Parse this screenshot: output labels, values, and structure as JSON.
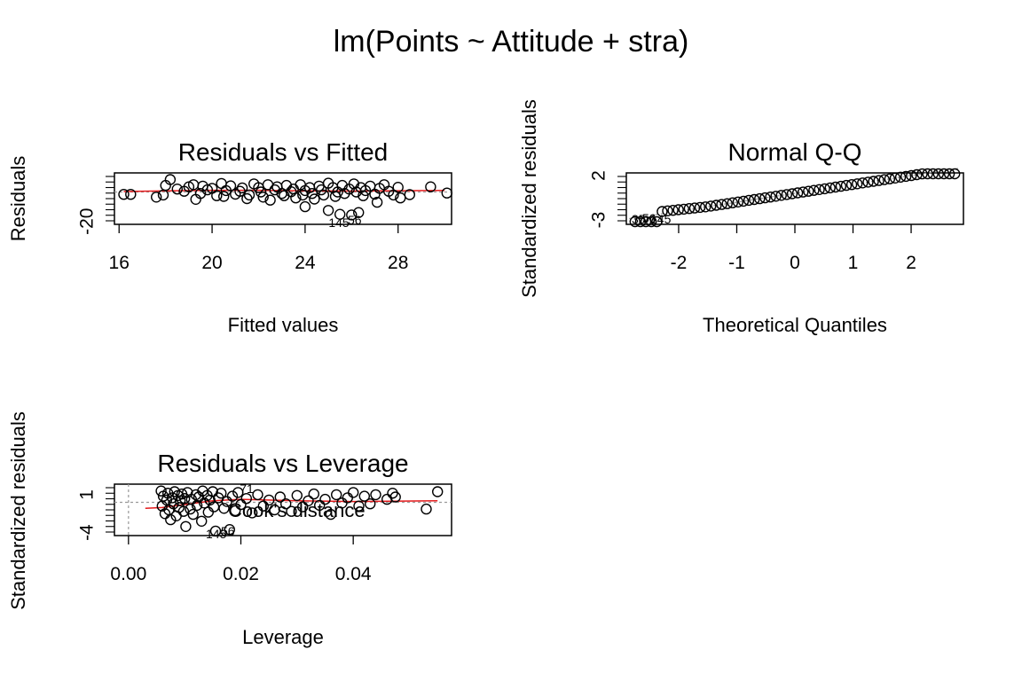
{
  "title": "lm(Points ~ Attitude + stra)",
  "chart_data": [
    {
      "type": "scatter",
      "title": "Residuals vs Fitted",
      "xlabel": "Fitted values",
      "ylabel": "Residuals",
      "xlim": [
        15.8,
        30.3
      ],
      "ylim": [
        -22,
        13
      ],
      "xticks": [
        16,
        20,
        24,
        28
      ],
      "yticks": [
        -20
      ],
      "reference_line_y": 0,
      "smooth_line": [
        [
          16.2,
          0.3
        ],
        [
          18,
          0.8
        ],
        [
          20,
          1.2
        ],
        [
          22,
          1.2
        ],
        [
          24,
          0.8
        ],
        [
          26,
          0.6
        ],
        [
          28,
          0.9
        ],
        [
          30,
          1.1
        ]
      ],
      "points": [
        [
          16.2,
          -1.6
        ],
        [
          16.5,
          -1.6
        ],
        [
          17.6,
          -3.5
        ],
        [
          17.9,
          -2
        ],
        [
          18,
          4.5
        ],
        [
          18.2,
          8.5
        ],
        [
          18.5,
          2
        ],
        [
          18.8,
          0.5
        ],
        [
          19,
          3.5
        ],
        [
          19.2,
          5
        ],
        [
          19.3,
          -5
        ],
        [
          19.5,
          -1
        ],
        [
          19.6,
          4
        ],
        [
          19.8,
          1.5
        ],
        [
          20,
          2.5
        ],
        [
          20.2,
          -2.5
        ],
        [
          20.4,
          5.8
        ],
        [
          20.5,
          -3
        ],
        [
          20.6,
          1
        ],
        [
          20.8,
          4.2
        ],
        [
          21,
          -1.5
        ],
        [
          21.2,
          0.5
        ],
        [
          21.3,
          2.8
        ],
        [
          21.5,
          -4.5
        ],
        [
          21.6,
          -2
        ],
        [
          21.8,
          5.5
        ],
        [
          22,
          3
        ],
        [
          22.1,
          0
        ],
        [
          22.2,
          -3.5
        ],
        [
          22.4,
          5
        ],
        [
          22.5,
          -5.5
        ],
        [
          22.7,
          1.5
        ],
        [
          22.8,
          3.5
        ],
        [
          23,
          -1
        ],
        [
          23.1,
          -2.5
        ],
        [
          23.2,
          4.5
        ],
        [
          23.4,
          0.2
        ],
        [
          23.5,
          2
        ],
        [
          23.6,
          -4
        ],
        [
          23.8,
          5
        ],
        [
          23.9,
          -2
        ],
        [
          24,
          1
        ],
        [
          24,
          -10
        ],
        [
          24.2,
          3
        ],
        [
          24.3,
          -1
        ],
        [
          24.4,
          -4.8
        ],
        [
          24.6,
          4
        ],
        [
          24.7,
          1.5
        ],
        [
          24.8,
          -2
        ],
        [
          25,
          6
        ],
        [
          25,
          -12.5
        ],
        [
          25.2,
          3
        ],
        [
          25.3,
          -3
        ],
        [
          25.4,
          0
        ],
        [
          25.5,
          -15.2
        ],
        [
          25.6,
          4.5
        ],
        [
          25.7,
          -1
        ],
        [
          25.9,
          2
        ],
        [
          26,
          -15.6
        ],
        [
          26.1,
          5.5
        ],
        [
          26.2,
          0
        ],
        [
          26.3,
          -14
        ],
        [
          26.4,
          3
        ],
        [
          26.5,
          -2.5
        ],
        [
          26.6,
          1
        ],
        [
          26.8,
          4
        ],
        [
          27,
          -1.5
        ],
        [
          27.1,
          -7
        ],
        [
          27.2,
          2.5
        ],
        [
          27.4,
          5
        ],
        [
          27.6,
          0.5
        ],
        [
          27.8,
          -2
        ],
        [
          28,
          3.2
        ],
        [
          28.1,
          -4
        ],
        [
          28.5,
          -1.8
        ],
        [
          29.4,
          3.5
        ],
        [
          30.1,
          -0.7
        ]
      ],
      "annotations": [
        "145",
        "56"
      ]
    },
    {
      "type": "scatter",
      "title": "Normal Q-Q",
      "xlabel": "Theoretical Quantiles",
      "ylabel": "Standardized residuals",
      "xlim": [
        -2.9,
        2.9
      ],
      "ylim": [
        -3.5,
        2.3
      ],
      "xticks": [
        -2,
        -1,
        0,
        1,
        2
      ],
      "yticks": [
        -3,
        2
      ],
      "reference_line": {
        "slope": 1.0,
        "intercept": 0.0
      },
      "quantile_range": [
        -2.75,
        2.75
      ],
      "annotations": [
        "35",
        "56",
        "145"
      ]
    },
    {
      "type": "scatter",
      "title": "Residuals vs Leverage",
      "xlabel": "Leverage",
      "ylabel": "Standardized residuals",
      "xlim": [
        -0.0025,
        0.0575
      ],
      "ylim": [
        -4.4,
        2.4
      ],
      "xticks": [
        "0.00",
        "0.02",
        "0.04"
      ],
      "xtick_values": [
        0,
        0.02,
        0.04
      ],
      "yticks": [
        -4,
        1
      ],
      "reference_line_y": 0,
      "reference_line_x": 0,
      "smooth_line": [
        [
          0.003,
          -0.8
        ],
        [
          0.006,
          -0.7
        ],
        [
          0.01,
          -0.3
        ],
        [
          0.015,
          0.2
        ],
        [
          0.02,
          0.4
        ],
        [
          0.03,
          0.2
        ],
        [
          0.04,
          0.1
        ],
        [
          0.055,
          0.2
        ]
      ],
      "points": [
        [
          0.0058,
          1.5
        ],
        [
          0.006,
          -0.5
        ],
        [
          0.0062,
          0.8
        ],
        [
          0.0065,
          -1.5
        ],
        [
          0.0068,
          0.3
        ],
        [
          0.007,
          1.2
        ],
        [
          0.0072,
          -1
        ],
        [
          0.0075,
          -2.3
        ],
        [
          0.0078,
          0.6
        ],
        [
          0.008,
          -0.2
        ],
        [
          0.0082,
          1.4
        ],
        [
          0.0085,
          -1.8
        ],
        [
          0.0088,
          0.9
        ],
        [
          0.009,
          -0.7
        ],
        [
          0.0092,
          0.2
        ],
        [
          0.0095,
          1.1
        ],
        [
          0.0098,
          -1.2
        ],
        [
          0.01,
          0.5
        ],
        [
          0.0102,
          -3.2
        ],
        [
          0.0105,
          1.3
        ],
        [
          0.011,
          -0.9
        ],
        [
          0.0112,
          0.4
        ],
        [
          0.0115,
          -1.6
        ],
        [
          0.012,
          1
        ],
        [
          0.0122,
          -0.4
        ],
        [
          0.0125,
          0.7
        ],
        [
          0.013,
          -2.5
        ],
        [
          0.0132,
          1.5
        ],
        [
          0.0135,
          -0.1
        ],
        [
          0.014,
          0.9
        ],
        [
          0.0142,
          -1.3
        ],
        [
          0.0145,
          0.3
        ],
        [
          0.015,
          1.4
        ],
        [
          0.0152,
          -0.6
        ],
        [
          0.0155,
          -3.8
        ],
        [
          0.016,
          0.6
        ],
        [
          0.0165,
          1.2
        ],
        [
          0.017,
          -0.8
        ],
        [
          0.0175,
          0.1
        ],
        [
          0.018,
          -3.6
        ],
        [
          0.0185,
          0.8
        ],
        [
          0.019,
          -1.1
        ],
        [
          0.0195,
          1.3
        ],
        [
          0.02,
          -0.3
        ],
        [
          0.021,
          0.5
        ],
        [
          0.022,
          -1.4
        ],
        [
          0.023,
          1
        ],
        [
          0.024,
          -0.5
        ],
        [
          0.025,
          0.3
        ],
        [
          0.026,
          -1
        ],
        [
          0.027,
          0.7
        ],
        [
          0.028,
          -0.2
        ],
        [
          0.029,
          -1.2
        ],
        [
          0.03,
          0.9
        ],
        [
          0.031,
          -0.6
        ],
        [
          0.032,
          0.2
        ],
        [
          0.033,
          1.1
        ],
        [
          0.034,
          -0.4
        ],
        [
          0.035,
          0.4
        ],
        [
          0.036,
          -1.6
        ],
        [
          0.037,
          1
        ],
        [
          0.038,
          -0.1
        ],
        [
          0.039,
          0.6
        ],
        [
          0.04,
          1.3
        ],
        [
          0.041,
          -0.5
        ],
        [
          0.042,
          0.8
        ],
        [
          0.043,
          -0.2
        ],
        [
          0.044,
          1
        ],
        [
          0.046,
          0.4
        ],
        [
          0.047,
          1.2
        ],
        [
          0.0475,
          0.7
        ],
        [
          0.053,
          -0.9
        ],
        [
          0.055,
          1.4
        ]
      ],
      "annotations": [
        "71",
        "145",
        "56",
        "Cook's distance"
      ]
    }
  ]
}
